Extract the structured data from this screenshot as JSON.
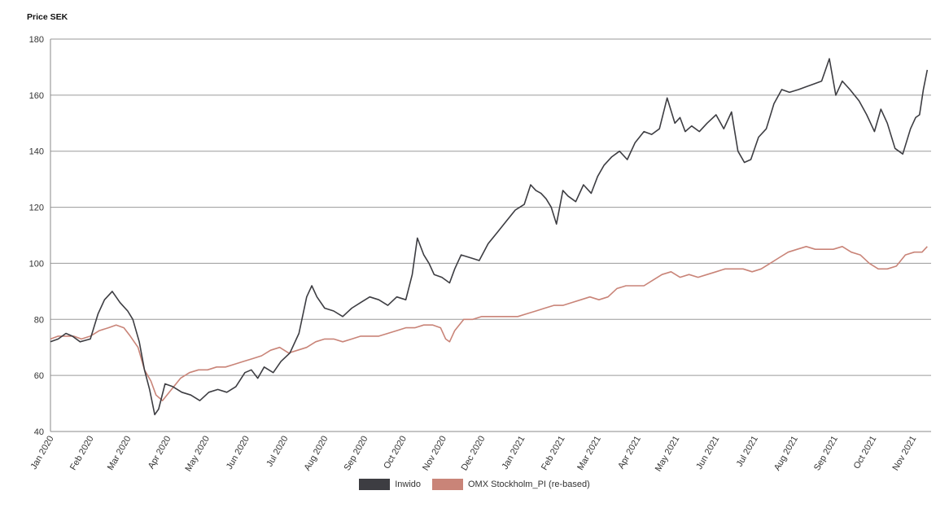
{
  "chart_data": {
    "type": "line",
    "title": "",
    "ylabel": "Price SEK",
    "xlabel": "",
    "ylim": [
      40,
      180
    ],
    "yticks": [
      40,
      60,
      80,
      100,
      120,
      140,
      160,
      180
    ],
    "xticks": [
      "Jan 2020",
      "Feb 2020",
      "Mar 2020",
      "Apr 2020",
      "May 2020",
      "Jun 2020",
      "Jul 2020",
      "Aug 2020",
      "Sep 2020",
      "Oct 2020",
      "Nov 2020",
      "Dec 2020",
      "Jan 2021",
      "Feb 2021",
      "Mar 2021",
      "Apr 2021",
      "May 2021",
      "Jun 2021",
      "Jul 2021",
      "Aug 2021",
      "Sep 2021",
      "Oct 2021",
      "Nov 2021"
    ],
    "grid": true,
    "legend_position": "bottom",
    "series": [
      {
        "name": "Inwido",
        "color": "#3d3d42",
        "x": [
          "2020-01-01",
          "2020-01-07",
          "2020-01-13",
          "2020-01-18",
          "2020-01-24",
          "2020-02-01",
          "2020-02-07",
          "2020-02-12",
          "2020-02-18",
          "2020-02-24",
          "2020-03-01",
          "2020-03-05",
          "2020-03-10",
          "2020-03-14",
          "2020-03-18",
          "2020-03-22",
          "2020-03-25",
          "2020-03-30",
          "2020-04-05",
          "2020-04-12",
          "2020-04-19",
          "2020-04-26",
          "2020-05-03",
          "2020-05-10",
          "2020-05-17",
          "2020-05-24",
          "2020-05-31",
          "2020-06-05",
          "2020-06-10",
          "2020-06-15",
          "2020-06-22",
          "2020-06-28",
          "2020-07-05",
          "2020-07-12",
          "2020-07-18",
          "2020-07-22",
          "2020-07-26",
          "2020-08-01",
          "2020-08-08",
          "2020-08-15",
          "2020-08-22",
          "2020-08-29",
          "2020-09-05",
          "2020-09-12",
          "2020-09-19",
          "2020-09-26",
          "2020-10-03",
          "2020-10-08",
          "2020-10-12",
          "2020-10-17",
          "2020-10-21",
          "2020-10-25",
          "2020-10-31",
          "2020-11-06",
          "2020-11-10",
          "2020-11-15",
          "2020-11-22",
          "2020-11-29",
          "2020-12-06",
          "2020-12-13",
          "2020-12-20",
          "2020-12-27",
          "2021-01-03",
          "2021-01-08",
          "2021-01-12",
          "2021-01-16",
          "2021-01-20",
          "2021-01-24",
          "2021-01-28",
          "2021-02-02",
          "2021-02-06",
          "2021-02-12",
          "2021-02-18",
          "2021-02-24",
          "2021-03-01",
          "2021-03-06",
          "2021-03-12",
          "2021-03-18",
          "2021-03-24",
          "2021-03-30",
          "2021-04-06",
          "2021-04-12",
          "2021-04-18",
          "2021-04-24",
          "2021-04-30",
          "2021-05-04",
          "2021-05-08",
          "2021-05-13",
          "2021-05-19",
          "2021-05-25",
          "2021-06-01",
          "2021-06-07",
          "2021-06-13",
          "2021-06-18",
          "2021-06-23",
          "2021-06-28",
          "2021-07-04",
          "2021-07-10",
          "2021-07-16",
          "2021-07-22",
          "2021-07-28",
          "2021-08-04",
          "2021-08-10",
          "2021-08-16",
          "2021-08-22",
          "2021-08-28",
          "2021-09-02",
          "2021-09-07",
          "2021-09-13",
          "2021-09-20",
          "2021-09-26",
          "2021-10-02",
          "2021-10-07",
          "2021-10-12",
          "2021-10-18",
          "2021-10-24",
          "2021-10-30",
          "2021-11-03",
          "2021-11-06",
          "2021-11-09",
          "2021-11-12"
        ],
        "y": [
          72,
          73,
          75,
          74,
          72,
          73,
          82,
          87,
          90,
          86,
          83,
          80,
          72,
          62,
          55,
          46,
          48,
          57,
          56,
          54,
          53,
          51,
          54,
          55,
          54,
          56,
          61,
          62,
          59,
          63,
          61,
          65,
          68,
          75,
          88,
          92,
          88,
          84,
          83,
          81,
          84,
          86,
          88,
          87,
          85,
          88,
          87,
          96,
          109,
          103,
          100,
          96,
          95,
          93,
          98,
          103,
          102,
          101,
          107,
          111,
          115,
          119,
          121,
          128,
          126,
          125,
          123,
          120,
          114,
          126,
          124,
          122,
          128,
          125,
          131,
          135,
          138,
          140,
          137,
          143,
          147,
          146,
          148,
          159,
          150,
          152,
          147,
          149,
          147,
          150,
          153,
          148,
          154,
          140,
          136,
          137,
          145,
          148,
          157,
          162,
          161,
          162,
          163,
          164,
          165,
          173,
          160,
          165,
          162,
          158,
          153,
          147,
          155,
          150,
          141,
          139,
          148,
          152,
          153,
          162,
          169
        ]
      },
      {
        "name": "OMX Stockholm_PI (re-based)",
        "color": "#c98478",
        "x": [
          "2020-01-01",
          "2020-01-07",
          "2020-01-13",
          "2020-01-19",
          "2020-01-25",
          "2020-02-01",
          "2020-02-08",
          "2020-02-15",
          "2020-02-21",
          "2020-02-27",
          "2020-03-03",
          "2020-03-09",
          "2020-03-14",
          "2020-03-19",
          "2020-03-23",
          "2020-03-28",
          "2020-04-04",
          "2020-04-11",
          "2020-04-18",
          "2020-04-25",
          "2020-05-02",
          "2020-05-09",
          "2020-05-16",
          "2020-05-23",
          "2020-05-30",
          "2020-06-06",
          "2020-06-13",
          "2020-06-20",
          "2020-06-27",
          "2020-07-04",
          "2020-07-11",
          "2020-07-18",
          "2020-07-25",
          "2020-08-01",
          "2020-08-08",
          "2020-08-15",
          "2020-08-22",
          "2020-08-29",
          "2020-09-05",
          "2020-09-12",
          "2020-09-19",
          "2020-09-26",
          "2020-10-03",
          "2020-10-10",
          "2020-10-17",
          "2020-10-24",
          "2020-10-30",
          "2020-11-03",
          "2020-11-06",
          "2020-11-10",
          "2020-11-17",
          "2020-11-24",
          "2020-12-01",
          "2020-12-08",
          "2020-12-15",
          "2020-12-22",
          "2020-12-29",
          "2021-01-05",
          "2021-01-12",
          "2021-01-19",
          "2021-01-26",
          "2021-02-02",
          "2021-02-09",
          "2021-02-16",
          "2021-02-23",
          "2021-03-02",
          "2021-03-09",
          "2021-03-16",
          "2021-03-23",
          "2021-03-30",
          "2021-04-06",
          "2021-04-13",
          "2021-04-20",
          "2021-04-27",
          "2021-05-04",
          "2021-05-11",
          "2021-05-18",
          "2021-05-25",
          "2021-06-01",
          "2021-06-08",
          "2021-06-15",
          "2021-06-22",
          "2021-06-29",
          "2021-07-06",
          "2021-07-13",
          "2021-07-20",
          "2021-07-27",
          "2021-08-03",
          "2021-08-10",
          "2021-08-17",
          "2021-08-24",
          "2021-08-31",
          "2021-09-07",
          "2021-09-14",
          "2021-09-21",
          "2021-09-28",
          "2021-10-05",
          "2021-10-12",
          "2021-10-19",
          "2021-10-26",
          "2021-11-02",
          "2021-11-08",
          "2021-11-12"
        ],
        "y": [
          73,
          74,
          74,
          74,
          73,
          74,
          76,
          77,
          78,
          77,
          74,
          70,
          62,
          58,
          53,
          51,
          55,
          59,
          61,
          62,
          62,
          63,
          63,
          64,
          65,
          66,
          67,
          69,
          70,
          68,
          69,
          70,
          72,
          73,
          73,
          72,
          73,
          74,
          74,
          74,
          75,
          76,
          77,
          77,
          78,
          78,
          77,
          73,
          72,
          76,
          80,
          80,
          81,
          81,
          81,
          81,
          81,
          82,
          83,
          84,
          85,
          85,
          86,
          87,
          88,
          87,
          88,
          91,
          92,
          92,
          92,
          94,
          96,
          97,
          95,
          96,
          95,
          96,
          97,
          98,
          98,
          98,
          97,
          98,
          100,
          102,
          104,
          105,
          106,
          105,
          105,
          105,
          106,
          104,
          103,
          100,
          98,
          98,
          99,
          103,
          104,
          104,
          106
        ]
      }
    ]
  },
  "legend": {
    "inwido_label": "Inwido",
    "omx_label": "OMX Stockholm_PI (re-based)"
  }
}
